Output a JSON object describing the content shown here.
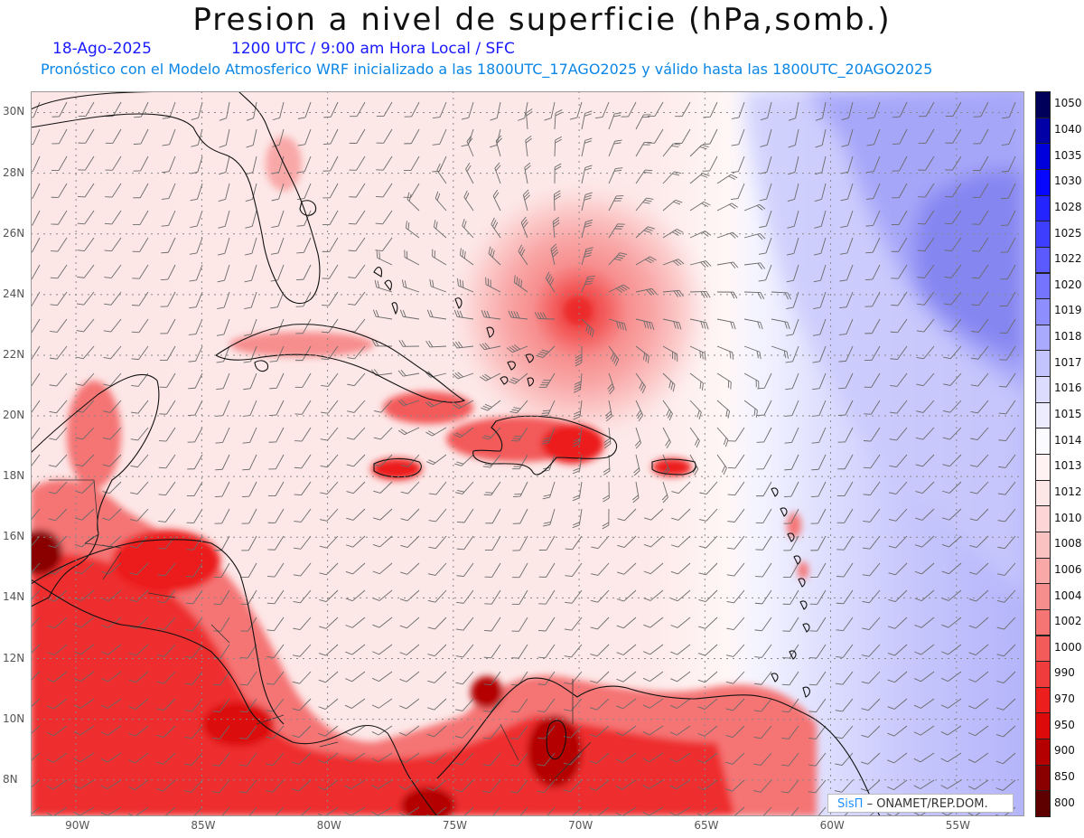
{
  "header": {
    "title": "Presion a nivel de superficie (hPa,somb.)",
    "date": "18-Ago-2025",
    "time_line": "1200 UTC / 9:00 am Hora Local / SFC",
    "description": "Pronóstico con el Modelo Atmosferico WRF inicializado a las 1800UTC_17AGO2025 y válido hasta las  1800UTC_20AGO2025"
  },
  "map": {
    "lat_labels": [
      "30N",
      "28N",
      "26N",
      "24N",
      "22N",
      "20N",
      "18N",
      "16N",
      "14N",
      "12N",
      "10N",
      "8N"
    ],
    "lon_labels": [
      "90W",
      "85W",
      "80W",
      "75W",
      "70W",
      "65W",
      "60W",
      "55W"
    ],
    "extent": {
      "lon_min": -91.8,
      "lon_max": -52.3,
      "lat_min": 6.8,
      "lat_max": 30.7
    },
    "hurricane_center": {
      "lon": -70.1,
      "lat": 23.3
    },
    "colors": {
      "land_low": "#e8151f",
      "background": "#fde6e6",
      "high": "#7777ee"
    }
  },
  "colorbar": {
    "levels": [
      "1050",
      "1040",
      "1035",
      "1030",
      "1028",
      "1025",
      "1022",
      "1020",
      "1019",
      "1018",
      "1017",
      "1016",
      "1015",
      "1014",
      "1013",
      "1012",
      "1010",
      "1008",
      "1006",
      "1004",
      "1002",
      "1000",
      "990",
      "970",
      "950",
      "900",
      "850",
      "800"
    ],
    "colors": [
      "#00005a",
      "#0000a6",
      "#0000dc",
      "#0707fe",
      "#2424fe",
      "#3e3efe",
      "#5a5afe",
      "#7474fe",
      "#8e8efe",
      "#a9a9fe",
      "#c3c3fe",
      "#dcdcfe",
      "#ececfe",
      "#fafaff",
      "#fff2f2",
      "#fde6e6",
      "#fcd6d6",
      "#fbc2c2",
      "#f9a8a8",
      "#f78e8e",
      "#f57474",
      "#f35a5a",
      "#f03c3c",
      "#ec1e1e",
      "#dc0a0a",
      "#b40000",
      "#8a0000",
      "#5e0000"
    ]
  },
  "credit": {
    "brand": "SisΠ",
    "text": "– ONAMET/REP.DOM."
  }
}
